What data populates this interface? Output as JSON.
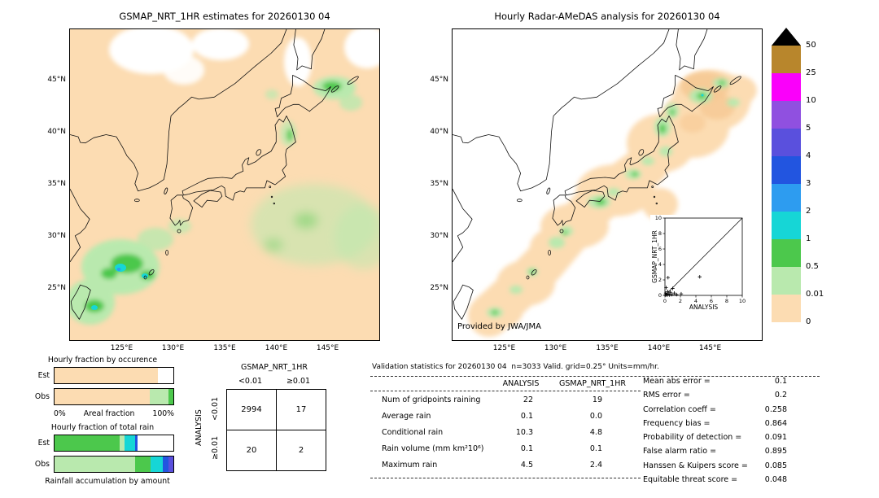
{
  "palette": {
    "black": "#000000",
    "brown": "#b8862c",
    "magenta": "#fa00fa",
    "purple": "#9050e0",
    "blueviolet": "#5a50dd",
    "blue": "#2255e0",
    "lightblue": "#2d9cf0",
    "cyan": "#16d6d6",
    "green": "#4cc84c",
    "palegreen": "#b9e9ae",
    "peach": "#fcdcb2",
    "deep_peach": "#f6c893",
    "white": "#ffffff"
  },
  "left_map": {
    "title": "GSMAP_NRT_1HR estimates for 20260130 04",
    "lat_ticks": [
      "45°N",
      "40°N",
      "35°N",
      "30°N",
      "25°N"
    ],
    "lon_ticks": [
      "125°E",
      "130°E",
      "135°E",
      "140°E",
      "145°E"
    ]
  },
  "right_map": {
    "title": "Hourly Radar-AMeDAS analysis for 20260130 04",
    "credit": "Provided by JWA/JMA",
    "lat_ticks": [
      "45°N",
      "40°N",
      "35°N",
      "30°N",
      "25°N"
    ],
    "lon_ticks": [
      "125°E",
      "130°E",
      "135°E",
      "140°E",
      "145°E"
    ],
    "inset": {
      "xlabel": "ANALYSIS",
      "ylabel": "GSMAP_NRT_1HR",
      "ticks": [
        "0",
        "2",
        "4",
        "6",
        "8",
        "10"
      ],
      "xlim": [
        0,
        10
      ],
      "ylim": [
        0,
        10
      ],
      "points": [
        [
          0.05,
          0.05
        ],
        [
          0.1,
          0.3
        ],
        [
          0.2,
          0.1
        ],
        [
          0.3,
          0.05
        ],
        [
          0.35,
          0.5
        ],
        [
          0.5,
          0.2
        ],
        [
          0.6,
          0.05
        ],
        [
          0.7,
          0.4
        ],
        [
          0.9,
          0.1
        ],
        [
          1.0,
          0.9
        ],
        [
          1.2,
          0.3
        ],
        [
          1.5,
          0.1
        ],
        [
          0.15,
          1.0
        ],
        [
          0.4,
          2.3
        ],
        [
          2.1,
          0.2
        ],
        [
          4.5,
          2.4
        ]
      ]
    }
  },
  "colorbar": {
    "labels": [
      "50",
      "25",
      "10",
      "5",
      "4",
      "3",
      "2",
      "1",
      "0.5",
      "0.01",
      "0"
    ],
    "segment_colors": [
      "brown",
      "magenta",
      "purple",
      "blueviolet",
      "blue",
      "lightblue",
      "cyan",
      "green",
      "palegreen",
      "peach"
    ]
  },
  "fraction_charts": {
    "occurrence": {
      "title": "Hourly fraction by occurence",
      "rows": [
        {
          "label": "Est",
          "segments": [
            {
              "color": "peach",
              "width": 87
            },
            {
              "color": "white",
              "width": 13
            }
          ]
        },
        {
          "label": "Obs",
          "segments": [
            {
              "color": "peach",
              "width": 80
            },
            {
              "color": "palegreen",
              "width": 16
            },
            {
              "color": "green",
              "width": 4
            }
          ]
        }
      ],
      "axis_left": "0%",
      "axis_label": "Areal fraction",
      "axis_right": "100%"
    },
    "total_rain": {
      "title": "Hourly fraction of total rain",
      "rows": [
        {
          "label": "Est",
          "segments": [
            {
              "color": "green",
              "width": 55
            },
            {
              "color": "palegreen",
              "width": 4
            },
            {
              "color": "cyan",
              "width": 9
            },
            {
              "color": "blue",
              "width": 2
            },
            {
              "color": "white",
              "width": 30
            }
          ]
        },
        {
          "label": "Obs",
          "segments": [
            {
              "color": "palegreen",
              "width": 68
            },
            {
              "color": "green",
              "width": 13
            },
            {
              "color": "cyan",
              "width": 10
            },
            {
              "color": "blue",
              "width": 5
            },
            {
              "color": "blueviolet",
              "width": 4
            }
          ]
        }
      ],
      "caption": "Rainfall accumulation by amount"
    }
  },
  "contingency": {
    "col_group_label": "GSMAP_NRT_1HR",
    "col_headers": [
      "<0.01",
      "≥0.01"
    ],
    "row_axis_label": "ANALYSIS",
    "row_headers": [
      "<0.01",
      "≥0.01"
    ],
    "values": [
      [
        "2994",
        "17"
      ],
      [
        "20",
        "2"
      ]
    ]
  },
  "stats": {
    "title": "Validation statistics for 20260130 04  n=3033 Valid. grid=0.25° Units=mm/hr.",
    "col_headers": [
      "ANALYSIS",
      "GSMAP_NRT_1HR"
    ],
    "rows": [
      {
        "label": "Num of gridpoints raining",
        "analysis": "22",
        "gsmap": "19"
      },
      {
        "label": "Average rain",
        "analysis": "0.1",
        "gsmap": "0.0"
      },
      {
        "label": "Conditional rain",
        "analysis": "10.3",
        "gsmap": "4.8"
      },
      {
        "label": "Rain volume (mm km²10⁶)",
        "analysis": "0.1",
        "gsmap": "0.1"
      },
      {
        "label": "Maximum rain",
        "analysis": "4.5",
        "gsmap": "2.4"
      }
    ],
    "summary": [
      {
        "label": "Mean abs error =",
        "value": "0.1"
      },
      {
        "label": "RMS error =",
        "value": "0.2"
      },
      {
        "label": "Correlation coeff =",
        "value": "0.258"
      },
      {
        "label": "Frequency bias =",
        "value": "0.864"
      },
      {
        "label": "Probability of detection =",
        "value": "0.091"
      },
      {
        "label": "False alarm ratio =",
        "value": "0.895"
      },
      {
        "label": "Hanssen & Kuipers score =",
        "value": "0.085"
      },
      {
        "label": "Equitable threat score =",
        "value": "0.048"
      }
    ]
  },
  "chart_data": [
    {
      "type": "heatmap",
      "title": "GSMAP_NRT_1HR estimates for 20260130 04",
      "x_ticks": [
        "125°E",
        "130°E",
        "135°E",
        "140°E",
        "145°E"
      ],
      "y_ticks": [
        "45°N",
        "40°N",
        "35°N",
        "30°N",
        "25°N"
      ],
      "units": "mm/hr",
      "colorbar_levels": [
        0,
        0.01,
        0.5,
        1,
        2,
        3,
        4,
        5,
        10,
        25,
        50
      ]
    },
    {
      "type": "heatmap",
      "title": "Hourly Radar-AMeDAS analysis for 20260130 04",
      "x_ticks": [
        "125°E",
        "130°E",
        "135°E",
        "140°E",
        "145°E"
      ],
      "y_ticks": [
        "45°N",
        "40°N",
        "35°N",
        "30°N",
        "25°N"
      ],
      "units": "mm/hr",
      "annotation": "Provided by JWA/JMA",
      "colorbar_levels": [
        0,
        0.01,
        0.5,
        1,
        2,
        3,
        4,
        5,
        10,
        25,
        50
      ]
    },
    {
      "type": "scatter",
      "xlabel": "ANALYSIS",
      "ylabel": "GSMAP_NRT_1HR",
      "xlim": [
        0,
        10
      ],
      "ylim": [
        0,
        10
      ],
      "points": [
        [
          0.05,
          0.05
        ],
        [
          0.1,
          0.3
        ],
        [
          0.2,
          0.1
        ],
        [
          0.3,
          0.05
        ],
        [
          0.35,
          0.5
        ],
        [
          0.5,
          0.2
        ],
        [
          0.6,
          0.05
        ],
        [
          0.7,
          0.4
        ],
        [
          0.9,
          0.1
        ],
        [
          1.0,
          0.9
        ],
        [
          1.2,
          0.3
        ],
        [
          1.5,
          0.1
        ],
        [
          0.15,
          1.0
        ],
        [
          0.4,
          2.3
        ],
        [
          2.1,
          0.2
        ],
        [
          4.5,
          2.4
        ]
      ]
    },
    {
      "type": "table",
      "title": "Contingency table (ANALYSIS rows × GSMAP_NRT_1HR cols)",
      "col_bins": [
        "<0.01",
        ">=0.01"
      ],
      "row_bins": [
        "<0.01",
        ">=0.01"
      ],
      "values": [
        [
          2994,
          17
        ],
        [
          20,
          2
        ]
      ],
      "n": 3033
    },
    {
      "type": "table",
      "title": "Validation statistics for 20260130 04, grid 0.25 deg, units mm/hr",
      "columns": [
        "ANALYSIS",
        "GSMAP_NRT_1HR"
      ],
      "num_gridpoints_raining": [
        22,
        19
      ],
      "average_rain": [
        0.1,
        0.0
      ],
      "conditional_rain": [
        10.3,
        4.8
      ],
      "rain_volume_mm_km2_1e6": [
        0.1,
        0.1
      ],
      "maximum_rain": [
        4.5,
        2.4
      ],
      "mean_abs_error": 0.1,
      "rms_error": 0.2,
      "correlation_coeff": 0.258,
      "frequency_bias": 0.864,
      "probability_of_detection": 0.091,
      "false_alarm_ratio": 0.895,
      "hanssen_kuipers_score": 0.085,
      "equitable_threat_score": 0.048
    }
  ]
}
